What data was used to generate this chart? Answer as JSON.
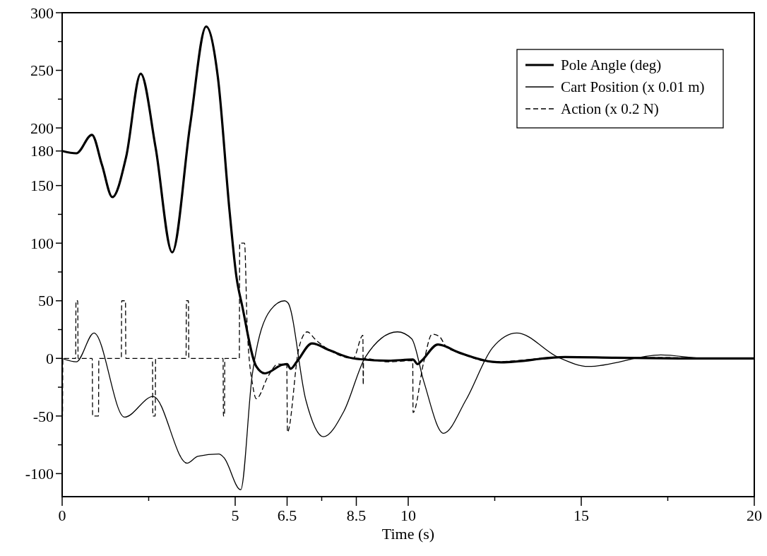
{
  "chart_data": {
    "type": "line",
    "xlabel": "Time (s)",
    "xlim": [
      0,
      20
    ],
    "ylim": [
      -120,
      300
    ],
    "xticks": [
      0,
      {
        "value": 2.5,
        "label": null
      },
      5,
      6.5,
      {
        "value": 7.5,
        "label": null
      },
      8.5,
      10,
      {
        "value": 12.5,
        "label": null
      },
      15,
      {
        "value": 17.5,
        "label": null
      },
      20
    ],
    "yticks": [
      -100,
      {
        "value": -75,
        "label": null
      },
      -50,
      {
        "value": -25,
        "label": null
      },
      0,
      {
        "value": 25,
        "label": null
      },
      50,
      {
        "value": 75,
        "label": null
      },
      100,
      {
        "value": 125,
        "label": null
      },
      150,
      180,
      200,
      {
        "value": 225,
        "label": null
      },
      250,
      {
        "value": 275,
        "label": null
      },
      300
    ],
    "legend": "top right",
    "grid": false,
    "marker": "none",
    "series": [
      {
        "name": "Pole Angle (deg)",
        "color": "#000000",
        "line_style": "solid",
        "x": [
          0,
          0.41,
          0.86,
          1.15,
          1.45,
          1.85,
          2.27,
          2.7,
          3.18,
          3.7,
          4.16,
          4.5,
          4.84,
          5.04,
          5.2,
          5.61,
          5.86,
          6.37,
          6.5,
          6.6,
          6.78,
          7.22,
          7.73,
          8.41,
          9.43,
          10.14,
          10.27,
          10.39,
          10.86,
          11.47,
          12.43,
          12.69,
          14.53,
          16,
          18,
          20
        ],
        "values": [
          180,
          178,
          194,
          168,
          140,
          175,
          247,
          183,
          92,
          203,
          288,
          244,
          127,
          70,
          46,
          -7,
          -13,
          -5.5,
          -5,
          -9,
          -3,
          13,
          7,
          0,
          -2,
          -1,
          -5,
          -2,
          12,
          5,
          -3,
          -3.4,
          1.2,
          0.5,
          0,
          0
        ]
      },
      {
        "name": "Cart Position (x 0.01 m)",
        "color": "#000000",
        "line_style": "solid",
        "x": [
          0,
          0.41,
          0.92,
          1.8,
          2.63,
          3.61,
          3.92,
          4.53,
          4.67,
          5.16,
          5.49,
          6.02,
          6.43,
          6.53,
          7.04,
          7.55,
          8.14,
          8.76,
          9.69,
          10.1,
          10.45,
          11.02,
          11.67,
          12.43,
          13.14,
          14.33,
          15.2,
          17.3,
          18.6,
          20
        ],
        "values": [
          0,
          -3,
          22,
          -51,
          -33,
          -91,
          -85,
          -83,
          -86,
          -114,
          -15,
          42,
          50,
          48,
          -36,
          -68,
          -46,
          1,
          23,
          17,
          -20,
          -65,
          -36,
          9,
          22,
          1,
          -7,
          3,
          0,
          0
        ]
      },
      {
        "name": "Action (x 0.2 N)",
        "color": "#000000",
        "line_style": "dashed",
        "x": [
          0,
          0.01,
          0.02,
          0.39,
          0.4,
          0.45,
          0.46,
          0.87,
          0.88,
          1.05,
          1.06,
          1.71,
          1.72,
          1.83,
          1.84,
          2.61,
          2.62,
          2.69,
          2.7,
          3.58,
          3.59,
          3.65,
          3.66,
          4.65,
          4.66,
          4.69,
          4.7,
          5.12,
          5.13,
          5.27,
          5.35,
          5.51,
          5.61,
          5.96,
          6.23,
          6.49,
          6.51,
          6.84,
          7.08,
          7.33,
          7.73,
          8.41,
          8.69,
          8.7,
          8.71,
          9.4,
          10.13,
          10.14,
          10.45,
          10.69,
          10.9,
          11.1,
          11.47,
          12.43,
          14.53,
          20
        ],
        "values": [
          0,
          -50,
          0,
          0,
          50,
          50,
          0,
          0,
          -50,
          -50,
          0,
          0,
          50,
          50,
          0,
          0,
          -50,
          -50,
          0,
          0,
          50,
          50,
          0,
          0,
          -50,
          -50,
          0,
          0,
          100,
          100,
          25,
          -24,
          -35,
          -15,
          -5,
          -5,
          -64,
          9,
          23,
          16,
          7,
          0,
          20,
          -23,
          0,
          -3,
          -2,
          -47,
          -3,
          21,
          19,
          10,
          5,
          -3,
          1,
          0
        ]
      }
    ]
  }
}
